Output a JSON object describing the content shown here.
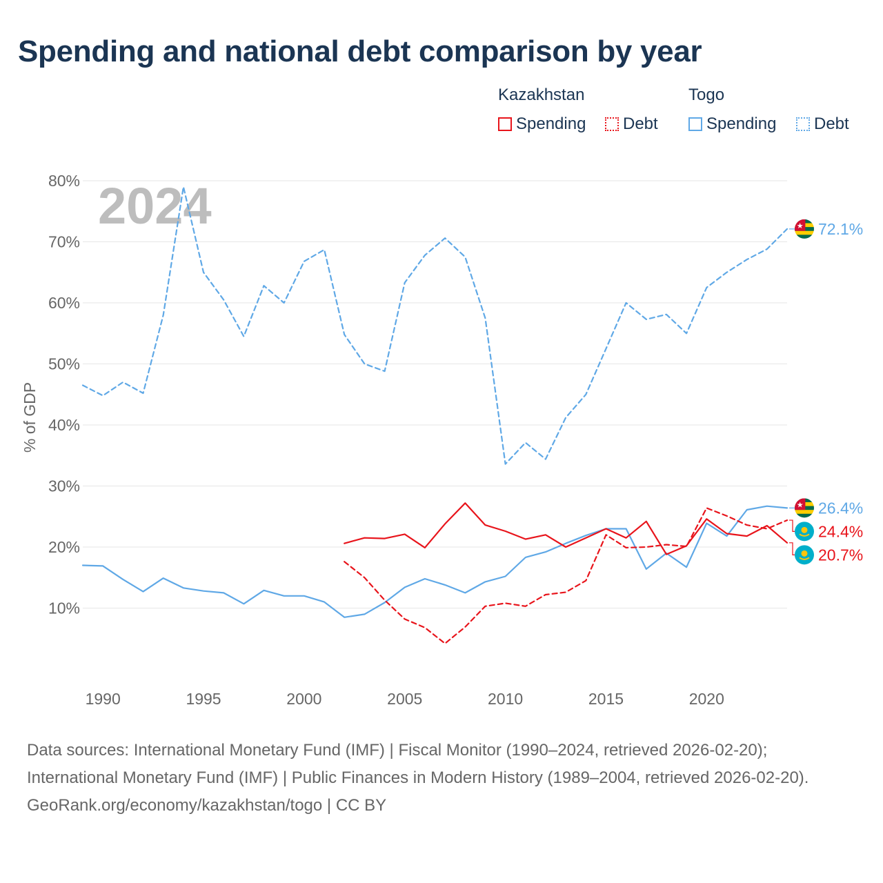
{
  "title": "Spending and national debt comparison by year",
  "legend": {
    "groups": [
      {
        "name": "Kazakhstan",
        "spending_label": "Spending",
        "debt_label": "Debt"
      },
      {
        "name": "Togo",
        "spending_label": "Spending",
        "debt_label": "Debt"
      }
    ]
  },
  "colors": {
    "kazakhstan": "#e8141b",
    "togo": "#5fa8e6",
    "year_watermark": "#bdbdbd",
    "grid": "#e6e6e6",
    "axis_text": "#666666"
  },
  "icons": {
    "kazakhstan": "kazakhstan-flag-icon",
    "togo": "togo-flag-icon"
  },
  "chart_data": {
    "type": "line",
    "year_label": "2024",
    "ylabel": "% of GDP",
    "xlim": [
      1989,
      2024
    ],
    "ylim": [
      0,
      80
    ],
    "x_ticks": [
      1990,
      1995,
      2000,
      2005,
      2010,
      2015,
      2020
    ],
    "y_ticks": [
      10,
      20,
      30,
      40,
      50,
      60,
      70,
      80
    ],
    "y_tick_labels": [
      "10%",
      "20%",
      "30%",
      "40%",
      "50%",
      "60%",
      "70%",
      "80%"
    ],
    "series": [
      {
        "name": "Togo Debt",
        "country": "Togo",
        "metric": "Debt",
        "style": "dashed",
        "color": "#5fa8e6",
        "end_label": "72.1%",
        "points": [
          [
            1989,
            46.5
          ],
          [
            1990,
            44.8
          ],
          [
            1991,
            47.0
          ],
          [
            1992,
            45.2
          ],
          [
            1993,
            58.0
          ],
          [
            1994,
            79.0
          ],
          [
            1995,
            65.0
          ],
          [
            1996,
            60.5
          ],
          [
            1997,
            54.5
          ],
          [
            1998,
            62.8
          ],
          [
            1999,
            60.0
          ],
          [
            2000,
            66.8
          ],
          [
            2001,
            68.7
          ],
          [
            2002,
            54.8
          ],
          [
            2003,
            50.0
          ],
          [
            2004,
            48.8
          ],
          [
            2005,
            63.3
          ],
          [
            2006,
            67.8
          ],
          [
            2007,
            70.6
          ],
          [
            2008,
            67.5
          ],
          [
            2009,
            57.5
          ],
          [
            2010,
            33.6
          ],
          [
            2011,
            37.1
          ],
          [
            2012,
            34.4
          ],
          [
            2013,
            41.2
          ],
          [
            2014,
            45.0
          ],
          [
            2015,
            52.5
          ],
          [
            2016,
            60.0
          ],
          [
            2017,
            57.3
          ],
          [
            2018,
            58.1
          ],
          [
            2019,
            55.0
          ],
          [
            2020,
            62.5
          ],
          [
            2021,
            65.0
          ],
          [
            2022,
            67.1
          ],
          [
            2023,
            68.8
          ],
          [
            2024,
            72.1
          ]
        ]
      },
      {
        "name": "Togo Spending",
        "country": "Togo",
        "metric": "Spending",
        "style": "solid",
        "color": "#5fa8e6",
        "end_label": "26.4%",
        "points": [
          [
            1989,
            17.0
          ],
          [
            1990,
            16.9
          ],
          [
            1991,
            14.7
          ],
          [
            1992,
            12.7
          ],
          [
            1993,
            14.9
          ],
          [
            1994,
            13.3
          ],
          [
            1995,
            12.8
          ],
          [
            1996,
            12.5
          ],
          [
            1997,
            10.7
          ],
          [
            1998,
            12.9
          ],
          [
            1999,
            12.0
          ],
          [
            2000,
            12.0
          ],
          [
            2001,
            11.0
          ],
          [
            2002,
            8.5
          ],
          [
            2003,
            9.0
          ],
          [
            2004,
            10.9
          ],
          [
            2005,
            13.4
          ],
          [
            2006,
            14.8
          ],
          [
            2007,
            13.8
          ],
          [
            2008,
            12.5
          ],
          [
            2009,
            14.3
          ],
          [
            2010,
            15.2
          ],
          [
            2011,
            18.3
          ],
          [
            2012,
            19.2
          ],
          [
            2013,
            20.6
          ],
          [
            2014,
            21.9
          ],
          [
            2015,
            23.0
          ],
          [
            2016,
            23.0
          ],
          [
            2017,
            16.4
          ],
          [
            2018,
            19.0
          ],
          [
            2019,
            16.7
          ],
          [
            2020,
            23.9
          ],
          [
            2021,
            21.8
          ],
          [
            2022,
            26.1
          ],
          [
            2023,
            26.7
          ],
          [
            2024,
            26.4
          ]
        ]
      },
      {
        "name": "Kazakhstan Debt",
        "country": "Kazakhstan",
        "metric": "Debt",
        "style": "dashed",
        "color": "#e8141b",
        "end_label": "24.4%",
        "points": [
          [
            2002,
            17.6
          ],
          [
            2003,
            15.0
          ],
          [
            2004,
            11.3
          ],
          [
            2005,
            8.2
          ],
          [
            2006,
            6.8
          ],
          [
            2007,
            4.2
          ],
          [
            2008,
            6.9
          ],
          [
            2009,
            10.3
          ],
          [
            2010,
            10.8
          ],
          [
            2011,
            10.3
          ],
          [
            2012,
            12.2
          ],
          [
            2013,
            12.6
          ],
          [
            2014,
            14.5
          ],
          [
            2015,
            22.0
          ],
          [
            2016,
            19.9
          ],
          [
            2017,
            20.0
          ],
          [
            2018,
            20.4
          ],
          [
            2019,
            20.1
          ],
          [
            2020,
            26.4
          ],
          [
            2021,
            25.1
          ],
          [
            2022,
            23.6
          ],
          [
            2023,
            23.0
          ],
          [
            2024,
            24.4
          ]
        ]
      },
      {
        "name": "Kazakhstan Spending",
        "country": "Kazakhstan",
        "metric": "Spending",
        "style": "solid",
        "color": "#e8141b",
        "end_label": "20.7%",
        "points": [
          [
            2002,
            20.6
          ],
          [
            2003,
            21.5
          ],
          [
            2004,
            21.4
          ],
          [
            2005,
            22.1
          ],
          [
            2006,
            19.9
          ],
          [
            2007,
            23.8
          ],
          [
            2008,
            27.2
          ],
          [
            2009,
            23.6
          ],
          [
            2010,
            22.6
          ],
          [
            2011,
            21.3
          ],
          [
            2012,
            22.0
          ],
          [
            2013,
            20.0
          ],
          [
            2014,
            21.5
          ],
          [
            2015,
            23.0
          ],
          [
            2016,
            21.5
          ],
          [
            2017,
            24.2
          ],
          [
            2018,
            18.8
          ],
          [
            2019,
            20.2
          ],
          [
            2020,
            24.6
          ],
          [
            2021,
            22.2
          ],
          [
            2022,
            21.8
          ],
          [
            2023,
            23.5
          ],
          [
            2024,
            20.7
          ]
        ]
      }
    ]
  },
  "footer": {
    "sources": "Data sources: International Monetary Fund (IMF) | Fiscal Monitor (1990–2024, retrieved 2026-02-20); International Monetary Fund (IMF) | Public Finances in Modern History (1989–2004, retrieved 2026-02-20).",
    "credit": "GeoRank.org/economy/kazakhstan/togo | CC BY"
  }
}
